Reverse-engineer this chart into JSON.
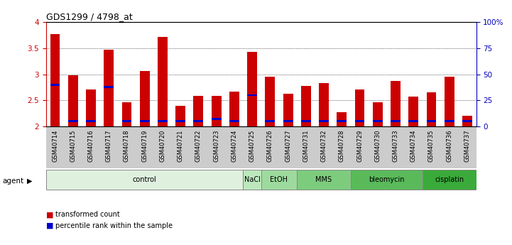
{
  "title": "GDS1299 / 4798_at",
  "samples": [
    "GSM40714",
    "GSM40715",
    "GSM40716",
    "GSM40717",
    "GSM40718",
    "GSM40719",
    "GSM40720",
    "GSM40721",
    "GSM40722",
    "GSM40723",
    "GSM40724",
    "GSM40725",
    "GSM40726",
    "GSM40727",
    "GSM40731",
    "GSM40732",
    "GSM40728",
    "GSM40729",
    "GSM40730",
    "GSM40733",
    "GSM40734",
    "GSM40735",
    "GSM40736",
    "GSM40737"
  ],
  "transformed_count": [
    3.77,
    2.98,
    2.71,
    3.47,
    2.47,
    3.06,
    3.71,
    2.39,
    2.58,
    2.58,
    2.67,
    3.43,
    2.95,
    2.63,
    2.78,
    2.83,
    2.28,
    2.71,
    2.47,
    2.87,
    2.57,
    2.65,
    2.95,
    2.21
  ],
  "percentile": [
    40,
    5,
    5,
    38,
    5,
    5,
    5,
    5,
    5,
    7,
    5,
    30,
    5,
    5,
    5,
    5,
    5,
    5,
    5,
    5,
    5,
    5,
    5,
    5
  ],
  "agents": [
    {
      "label": "control",
      "start": 0,
      "end": 11,
      "color": "#dff0df"
    },
    {
      "label": "NaCl",
      "start": 11,
      "end": 12,
      "color": "#bce8bc"
    },
    {
      "label": "EtOH",
      "start": 12,
      "end": 14,
      "color": "#9dda9d"
    },
    {
      "label": "MMS",
      "start": 14,
      "end": 17,
      "color": "#7dcc7d"
    },
    {
      "label": "bleomycin",
      "start": 17,
      "end": 21,
      "color": "#5aba5a"
    },
    {
      "label": "cisplatin",
      "start": 21,
      "end": 24,
      "color": "#3aaa3a"
    }
  ],
  "ylim_left": [
    2.0,
    4.0
  ],
  "ylim_right": [
    0,
    100
  ],
  "yticks_left": [
    2.0,
    2.5,
    3.0,
    3.5,
    4.0
  ],
  "ytick_labels_left": [
    "2",
    "2.5",
    "3",
    "3.5",
    "4"
  ],
  "yticks_right": [
    0,
    25,
    50,
    75,
    100
  ],
  "ytick_labels_right": [
    "0",
    "25",
    "50",
    "75",
    "100%"
  ],
  "bar_color": "#cc0000",
  "percentile_color": "#0000cc",
  "grid_color": "#000000",
  "bg_color": "#ffffff",
  "tick_bg_color": "#cccccc",
  "left_axis_color": "#cc0000",
  "right_axis_color": "#0000bb"
}
